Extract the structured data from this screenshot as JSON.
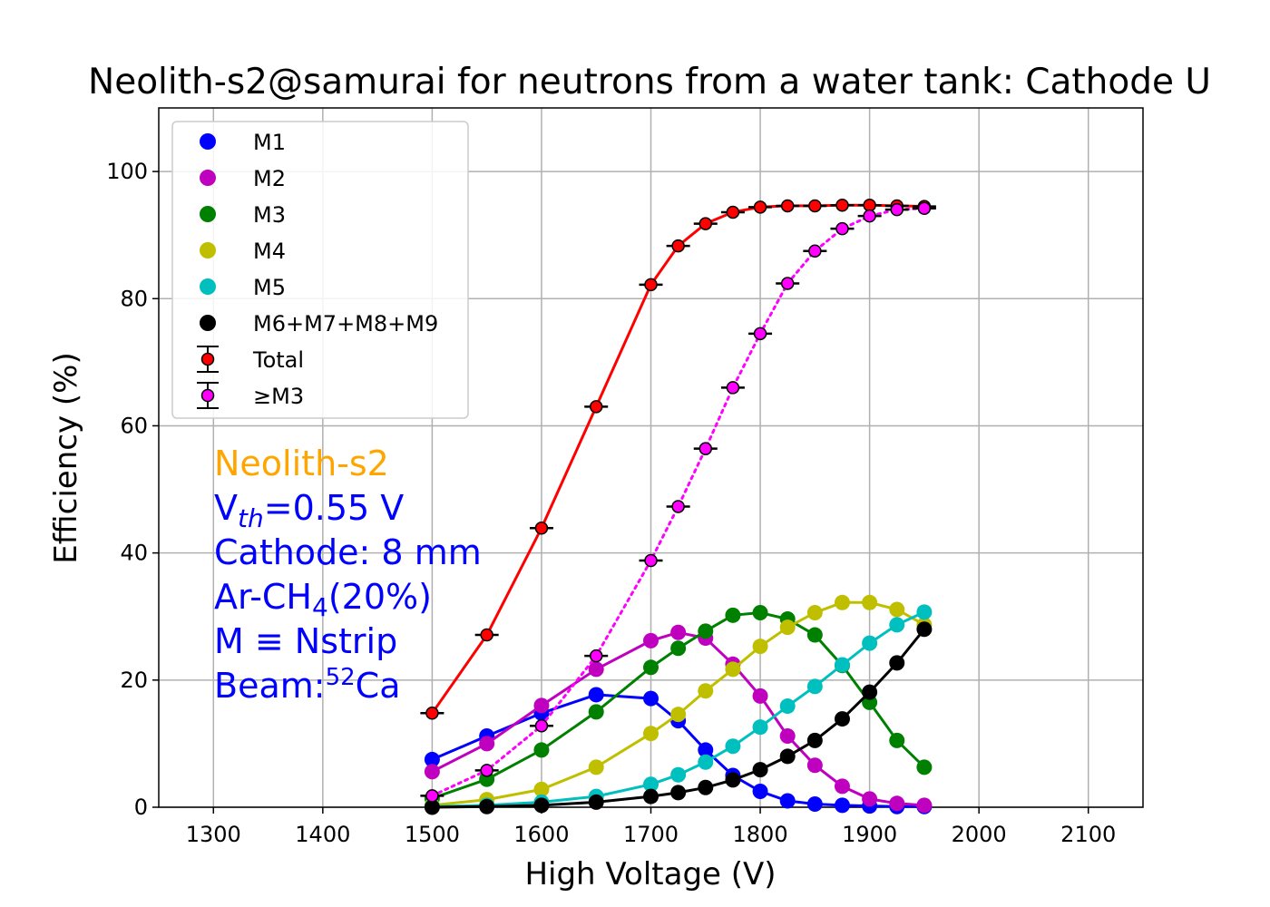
{
  "chart_data": {
    "type": "line",
    "title": "Neolith-s2@samurai for neutrons from a water tank: Cathode U",
    "xlabel": "High Voltage (V)",
    "ylabel": "Efficiency (%)",
    "xlim": [
      1250,
      2150
    ],
    "ylim": [
      0,
      110
    ],
    "xticks": [
      1300,
      1400,
      1500,
      1600,
      1700,
      1800,
      1900,
      2000,
      2100
    ],
    "yticks": [
      0,
      20,
      40,
      60,
      80,
      100
    ],
    "grid": true,
    "legend_position": "top-left",
    "x": [
      1500,
      1550,
      1600,
      1650,
      1700,
      1725,
      1750,
      1775,
      1800,
      1825,
      1850,
      1875,
      1900,
      1925,
      1950
    ],
    "series": [
      {
        "name": "M1",
        "color": "#0000ff",
        "style": "solid",
        "marker": "dot",
        "values": [
          7.5,
          11.2,
          14.8,
          17.7,
          17.1,
          13.6,
          9.0,
          5.0,
          2.5,
          1.0,
          0.5,
          0.3,
          0.2,
          0.1,
          0.1
        ]
      },
      {
        "name": "M2",
        "color": "#bf00bf",
        "style": "solid",
        "marker": "dot",
        "values": [
          5.6,
          10.0,
          16.0,
          21.7,
          26.2,
          27.5,
          26.6,
          22.5,
          17.5,
          11.2,
          6.6,
          3.3,
          1.3,
          0.6,
          0.3
        ]
      },
      {
        "name": "M3",
        "color": "#008000",
        "style": "solid",
        "marker": "dot",
        "values": [
          1.4,
          4.4,
          9.0,
          15.0,
          22.0,
          25.0,
          27.7,
          30.2,
          30.6,
          29.6,
          27.1,
          22.3,
          16.5,
          10.5,
          6.3
        ]
      },
      {
        "name": "M4",
        "color": "#bfbf00",
        "style": "solid",
        "marker": "dot",
        "values": [
          0.3,
          1.2,
          2.8,
          6.3,
          11.6,
          14.6,
          18.3,
          21.7,
          25.3,
          28.3,
          30.6,
          32.2,
          32.2,
          31.1,
          28.7
        ]
      },
      {
        "name": "M5",
        "color": "#00bfbf",
        "style": "solid",
        "marker": "dot",
        "values": [
          0.1,
          0.3,
          0.8,
          1.7,
          3.6,
          5.1,
          7.1,
          9.6,
          12.6,
          15.9,
          19.0,
          22.4,
          25.8,
          28.7,
          30.7
        ]
      },
      {
        "name": "M6+M7+M8+M9",
        "color": "#000000",
        "style": "solid",
        "marker": "dot",
        "values": [
          0.0,
          0.1,
          0.3,
          0.8,
          1.7,
          2.3,
          3.1,
          4.3,
          5.9,
          8.0,
          10.5,
          13.9,
          18.1,
          22.7,
          28.0
        ]
      },
      {
        "name": "Total",
        "color": "#ff0000",
        "style": "solid",
        "marker": "errorbar",
        "values": [
          14.8,
          27.1,
          43.9,
          63.0,
          82.2,
          88.3,
          91.8,
          93.6,
          94.4,
          94.6,
          94.6,
          94.7,
          94.7,
          94.6,
          94.5
        ]
      },
      {
        "name": "≥M3",
        "color": "#ff00ff",
        "style": "dotted",
        "marker": "errorbar",
        "values": [
          1.8,
          5.8,
          12.8,
          23.8,
          38.8,
          47.3,
          56.4,
          66.0,
          74.5,
          82.4,
          87.5,
          91.0,
          93.0,
          94.0,
          94.2
        ]
      }
    ],
    "annotation": {
      "detector": "Neolith-s2",
      "vth_prefix": "V",
      "vth_sub": "th",
      "vth_suffix": "=0.55 V",
      "cathode": "Cathode: 8 mm",
      "gas_prefix": "Ar-CH",
      "gas_sub": "4",
      "gas_suffix": "(20%)",
      "m_def": "M ≡ Nstrip",
      "beam_prefix": "Beam:",
      "beam_sup": "52",
      "beam_suffix": "Ca",
      "detector_color": "#ffa500",
      "text_color": "#0000ff"
    }
  }
}
